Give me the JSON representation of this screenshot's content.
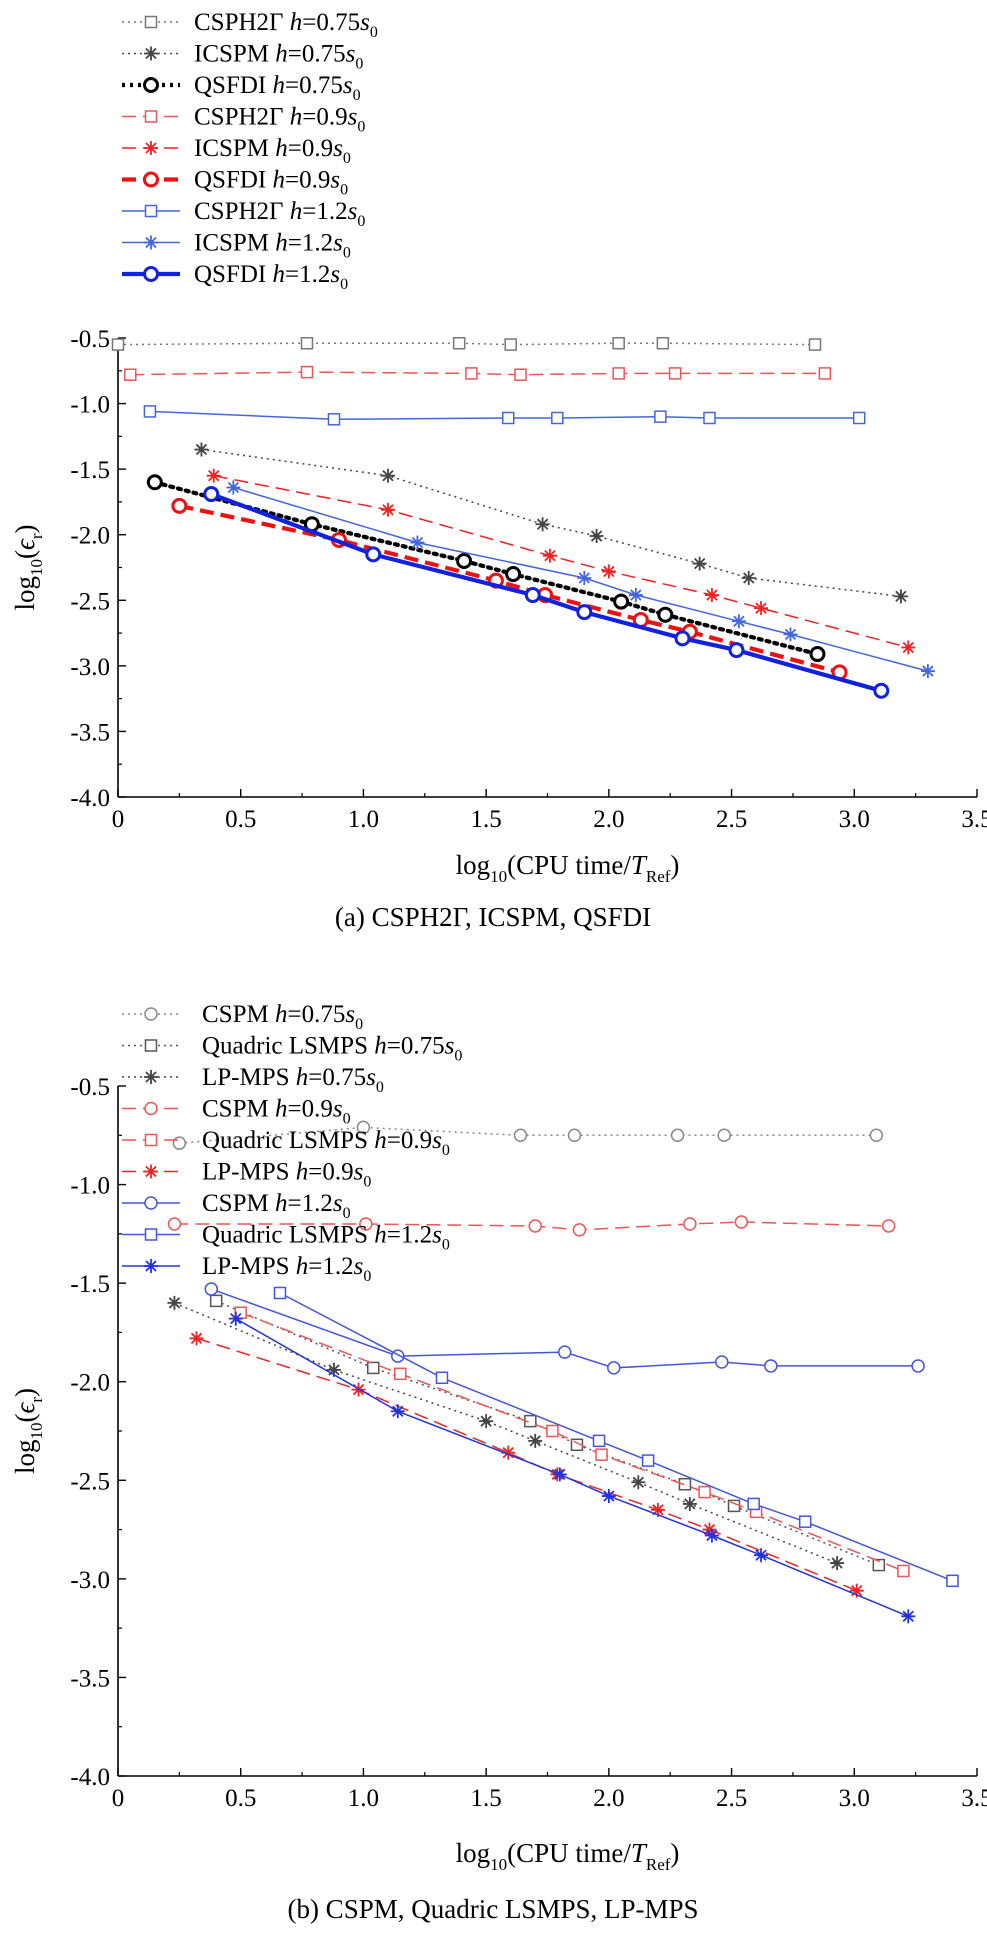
{
  "chart_data": [
    {
      "type": "line",
      "panel": "a",
      "caption": "(a) CSPH2Γ, ICSPM, QSFDI",
      "xlabel": {
        "prefix": "log",
        "sub": "10",
        "main": "(CPU time/",
        "italic": "T",
        "italic_sub": "Ref",
        "suffix": ")"
      },
      "ylabel": {
        "prefix": "log",
        "sub": "10",
        "main": "(",
        "italic": "ϵ",
        "italic_sub": "r",
        "suffix": ")"
      },
      "xlim": [
        0,
        3.5
      ],
      "ylim": [
        -4.0,
        -0.5
      ],
      "xticks": [
        "0",
        "0.5",
        "1.0",
        "1.5",
        "2.0",
        "2.5",
        "3.0",
        "3.5"
      ],
      "yticks": [
        "-0.5",
        "-1.0",
        "-1.5",
        "-2.0",
        "-2.5",
        "-3.0",
        "-3.5",
        "-4.0"
      ],
      "legend_position": "top-left, above plot",
      "series": [
        {
          "name": "CSPH2Γ",
          "h": "0.75",
          "s": "s",
          "s_sub": "0",
          "color": "#777777",
          "marker": "square",
          "style": "dotted",
          "x": [
            0.0,
            0.77,
            1.39,
            1.6,
            2.04,
            2.22,
            2.84
          ],
          "y": [
            -0.55,
            -0.54,
            -0.54,
            -0.55,
            -0.54,
            -0.54,
            -0.55
          ]
        },
        {
          "name": "ICSPM",
          "h": "0.75",
          "s": "s",
          "s_sub": "0",
          "color": "#444444",
          "marker": "star",
          "style": "dotted",
          "x": [
            0.34,
            1.1,
            1.73,
            1.95,
            2.37,
            2.57,
            3.19
          ],
          "y": [
            -1.35,
            -1.55,
            -1.92,
            -2.01,
            -2.22,
            -2.33,
            -2.47
          ]
        },
        {
          "name": "QSFDI",
          "h": "0.75",
          "s": "s",
          "s_sub": "0",
          "color": "#000000",
          "marker": "circle",
          "style": "bold-dotted",
          "x": [
            0.15,
            0.79,
            1.41,
            1.61,
            2.05,
            2.23,
            2.85
          ],
          "y": [
            -1.6,
            -1.92,
            -2.2,
            -2.3,
            -2.51,
            -2.61,
            -2.91
          ]
        },
        {
          "name": "CSPH2Γ",
          "h": "0.9",
          "s": "s",
          "s_sub": "0",
          "color": "#ee5555",
          "marker": "square",
          "style": "dashed",
          "x": [
            0.05,
            0.77,
            1.44,
            1.64,
            2.04,
            2.27,
            2.88
          ],
          "y": [
            -0.78,
            -0.76,
            -0.77,
            -0.78,
            -0.77,
            -0.77,
            -0.77
          ]
        },
        {
          "name": "ICSPM",
          "h": "0.9",
          "s": "s",
          "s_sub": "0",
          "color": "#ee2222",
          "marker": "star",
          "style": "dashed",
          "x": [
            0.39,
            1.1,
            1.76,
            2.0,
            2.42,
            2.62,
            3.22
          ],
          "y": [
            -1.55,
            -1.81,
            -2.16,
            -2.28,
            -2.46,
            -2.56,
            -2.86
          ]
        },
        {
          "name": "QSFDI",
          "h": "0.9",
          "s": "s",
          "s_sub": "0",
          "color": "#ee1111",
          "marker": "circle",
          "style": "bold-dashed",
          "x": [
            0.25,
            0.9,
            1.54,
            1.74,
            2.13,
            2.33,
            2.94
          ],
          "y": [
            -1.78,
            -2.04,
            -2.35,
            -2.46,
            -2.65,
            -2.74,
            -3.05
          ]
        },
        {
          "name": "CSPH2Γ",
          "h": "1.2",
          "s": "s",
          "s_sub": "0",
          "color": "#4466dd",
          "marker": "square",
          "style": "solid",
          "x": [
            0.13,
            0.88,
            1.59,
            1.79,
            2.21,
            2.41,
            3.02
          ],
          "y": [
            -1.06,
            -1.12,
            -1.11,
            -1.11,
            -1.1,
            -1.11,
            -1.11
          ]
        },
        {
          "name": "ICSPM",
          "h": "1.2",
          "s": "s",
          "s_sub": "0",
          "color": "#4466dd",
          "marker": "star",
          "style": "solid",
          "x": [
            0.47,
            1.22,
            1.9,
            2.11,
            2.53,
            2.74,
            3.3
          ],
          "y": [
            -1.64,
            -2.06,
            -2.33,
            -2.46,
            -2.66,
            -2.76,
            -3.04
          ]
        },
        {
          "name": "QSFDI",
          "h": "1.2",
          "s": "s",
          "s_sub": "0",
          "color": "#1122dd",
          "marker": "circle",
          "style": "bold-solid",
          "x": [
            0.38,
            1.04,
            1.69,
            1.9,
            2.3,
            2.52,
            3.11
          ],
          "y": [
            -1.69,
            -2.15,
            -2.46,
            -2.59,
            -2.79,
            -2.88,
            -3.19
          ]
        }
      ]
    },
    {
      "type": "line",
      "panel": "b",
      "caption": "(b) CSPM, Quadric LSMPS, LP-MPS",
      "xlabel": {
        "prefix": "log",
        "sub": "10",
        "main": "(CPU time/",
        "italic": "T",
        "italic_sub": "Ref",
        "suffix": ")"
      },
      "ylabel": {
        "prefix": "log",
        "sub": "10",
        "main": "(",
        "italic": "ϵ",
        "italic_sub": "r",
        "suffix": ")"
      },
      "xlim": [
        0,
        3.5
      ],
      "ylim": [
        -4.0,
        -0.5
      ],
      "xticks": [
        "0",
        "0.5",
        "1.0",
        "1.5",
        "2.0",
        "2.5",
        "3.0",
        "3.5"
      ],
      "yticks": [
        "-0.5",
        "-1.0",
        "-1.5",
        "-2.0",
        "-2.5",
        "-3.0",
        "-3.5",
        "-4.0"
      ],
      "legend_position": "top-left, above plot",
      "series": [
        {
          "name": "CSPM",
          "h": "0.75",
          "s": "s",
          "s_sub": "0",
          "color": "#888888",
          "marker": "circle",
          "style": "dotted",
          "x": [
            0.25,
            1.0,
            1.64,
            1.86,
            2.28,
            2.47,
            3.09
          ],
          "y": [
            -0.79,
            -0.71,
            -0.75,
            -0.75,
            -0.75,
            -0.75,
            -0.75
          ]
        },
        {
          "name": "Quadric LSMPS",
          "h": "0.75",
          "s": "s",
          "s_sub": "0",
          "color": "#555555",
          "marker": "square",
          "style": "dotted",
          "x": [
            0.4,
            1.04,
            1.68,
            1.87,
            2.31,
            2.51,
            3.1
          ],
          "y": [
            -1.59,
            -1.93,
            -2.2,
            -2.32,
            -2.52,
            -2.63,
            -2.93
          ]
        },
        {
          "name": "LP-MPS",
          "h": "0.75",
          "s": "s",
          "s_sub": "0",
          "color": "#444444",
          "marker": "star",
          "style": "dotted",
          "x": [
            0.23,
            0.88,
            1.5,
            1.7,
            2.12,
            2.33,
            2.93
          ],
          "y": [
            -1.6,
            -1.94,
            -2.2,
            -2.3,
            -2.51,
            -2.62,
            -2.92
          ]
        },
        {
          "name": "CSPM",
          "h": "0.9",
          "s": "s",
          "s_sub": "0",
          "color": "#ee5555",
          "marker": "circle",
          "style": "dashed",
          "x": [
            0.23,
            1.01,
            1.7,
            1.88,
            2.33,
            2.54,
            3.14
          ],
          "y": [
            -1.2,
            -1.2,
            -1.21,
            -1.23,
            -1.2,
            -1.19,
            -1.21
          ]
        },
        {
          "name": "Quadric LSMPS",
          "h": "0.9",
          "s": "s",
          "s_sub": "0",
          "color": "#ee5555",
          "marker": "square",
          "style": "dashed",
          "x": [
            0.5,
            1.15,
            1.77,
            1.97,
            2.39,
            2.6,
            3.2
          ],
          "y": [
            -1.65,
            -1.96,
            -2.25,
            -2.37,
            -2.56,
            -2.66,
            -2.96
          ]
        },
        {
          "name": "LP-MPS",
          "h": "0.9",
          "s": "s",
          "s_sub": "0",
          "color": "#ee2222",
          "marker": "star",
          "style": "dashed",
          "x": [
            0.32,
            0.98,
            1.59,
            1.79,
            2.2,
            2.41,
            3.01
          ],
          "y": [
            -1.78,
            -2.04,
            -2.36,
            -2.47,
            -2.65,
            -2.75,
            -3.06
          ]
        },
        {
          "name": "CSPM",
          "h": "1.2",
          "s": "s",
          "s_sub": "0",
          "color": "#4455dd",
          "marker": "circle",
          "style": "solid",
          "x": [
            0.38,
            1.14,
            1.82,
            2.02,
            2.46,
            2.66,
            3.26
          ],
          "y": [
            -1.53,
            -1.87,
            -1.85,
            -1.93,
            -1.9,
            -1.92,
            -1.92
          ]
        },
        {
          "name": "Quadric LSMPS",
          "h": "1.2",
          "s": "s",
          "s_sub": "0",
          "color": "#4455dd",
          "marker": "square",
          "style": "solid",
          "x": [
            0.66,
            1.32,
            1.96,
            2.16,
            2.59,
            2.8,
            3.4
          ],
          "y": [
            -1.55,
            -1.98,
            -2.3,
            -2.4,
            -2.62,
            -2.71,
            -3.01
          ]
        },
        {
          "name": "LP-MPS",
          "h": "1.2",
          "s": "s",
          "s_sub": "0",
          "color": "#2233dd",
          "marker": "star",
          "style": "solid",
          "x": [
            0.48,
            1.14,
            1.8,
            2.0,
            2.42,
            2.62,
            3.22
          ],
          "y": [
            -1.68,
            -2.15,
            -2.47,
            -2.58,
            -2.78,
            -2.88,
            -3.19
          ]
        }
      ]
    }
  ]
}
